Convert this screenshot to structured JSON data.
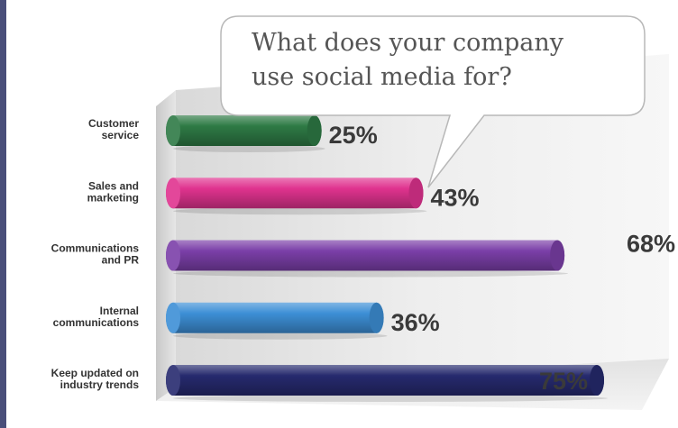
{
  "chart_data": {
    "type": "bar",
    "orientation": "horizontal",
    "title": "What does your company use social media for?",
    "categories": [
      [
        "Customer",
        "service"
      ],
      [
        "Sales and",
        "marketing"
      ],
      [
        "Communications",
        "and PR"
      ],
      [
        "Internal",
        "communications"
      ],
      [
        "Keep updated on",
        "industry trends"
      ]
    ],
    "values": [
      25,
      43,
      68,
      36,
      75
    ],
    "value_labels": [
      "25%",
      "43%",
      "68%",
      "36%",
      "75%"
    ],
    "colors": [
      "#2e7a45",
      "#e0338f",
      "#7b3fa8",
      "#3d8fd6",
      "#262a6e"
    ],
    "xlim": [
      0,
      75
    ],
    "xlabel": "",
    "ylabel": "",
    "grid": false,
    "legend": "none"
  },
  "bubble": {
    "title_lines": [
      "What does your company",
      "use social media for?"
    ]
  }
}
